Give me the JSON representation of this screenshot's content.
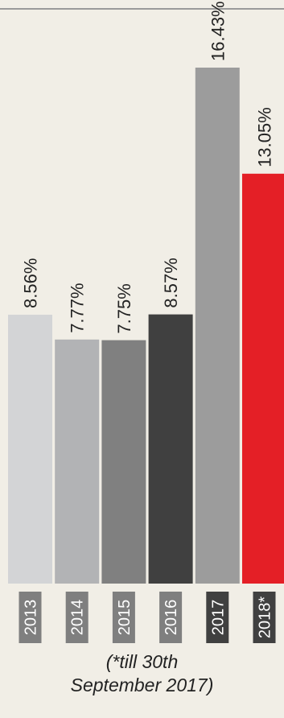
{
  "chart_data": {
    "type": "bar",
    "categories": [
      "2013",
      "2014",
      "2015",
      "2016",
      "2017",
      "2018*"
    ],
    "values": [
      8.56,
      7.77,
      7.75,
      8.57,
      16.43,
      13.05
    ],
    "value_labels": [
      "8.56%",
      "7.77%",
      "7.75%",
      "8.57%",
      "16.43%",
      "13.05%"
    ],
    "ylim": [
      0,
      18.3
    ],
    "grid": false,
    "title": "",
    "xlabel": "",
    "ylabel": "",
    "bar_colors": [
      "#d3d4d6",
      "#b2b3b5",
      "#808080",
      "#404040",
      "#9c9c9c",
      "#e41f26"
    ],
    "category_label_bg": [
      "#7f7f7f",
      "#7f7f7f",
      "#7f7f7f",
      "#7f7f7f",
      "#404040",
      "#404040"
    ],
    "category_label_color": "#ffffff",
    "value_label_color": "#222222",
    "top_rule_color": "#9a9a9a"
  },
  "footnote": "(*till 30th\nSeptember 2017)"
}
